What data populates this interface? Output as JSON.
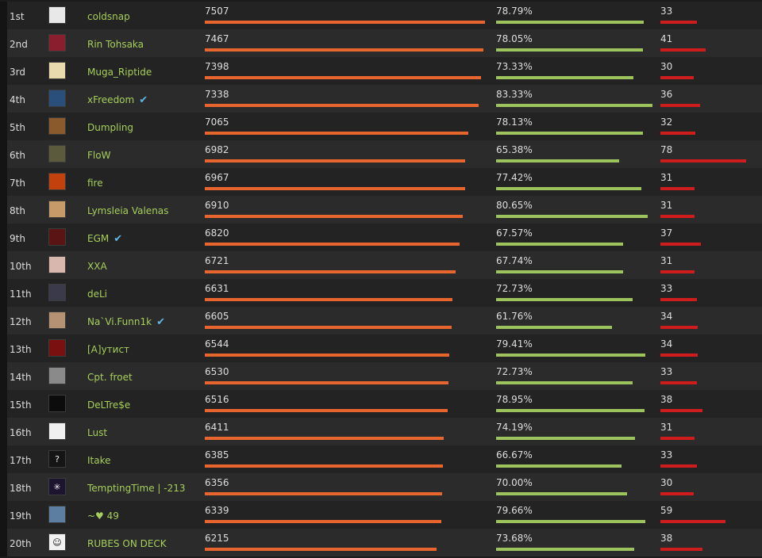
{
  "colors": {
    "mmr_bar": "#e8662d",
    "winrate_bar": "#9dc45c",
    "games_bar": "#cf1d1d",
    "name": "#a6cf5b"
  },
  "rows": [
    {
      "rank": "1st",
      "name": "coldsnap",
      "verified": false,
      "mmr": "7507",
      "winrate": "78.79%",
      "games": "33",
      "winrate_pct": 78.79
    },
    {
      "rank": "2nd",
      "name": "Rin Tohsaka",
      "verified": false,
      "mmr": "7467",
      "winrate": "78.05%",
      "games": "41",
      "winrate_pct": 78.05
    },
    {
      "rank": "3rd",
      "name": "Muga_Riptide",
      "verified": false,
      "mmr": "7398",
      "winrate": "73.33%",
      "games": "30",
      "winrate_pct": 73.33
    },
    {
      "rank": "4th",
      "name": "xFreedom",
      "verified": true,
      "mmr": "7338",
      "winrate": "83.33%",
      "games": "36",
      "winrate_pct": 83.33
    },
    {
      "rank": "5th",
      "name": "Dumpling",
      "verified": false,
      "mmr": "7065",
      "winrate": "78.13%",
      "games": "32",
      "winrate_pct": 78.13
    },
    {
      "rank": "6th",
      "name": "FloW",
      "verified": false,
      "mmr": "6982",
      "winrate": "65.38%",
      "games": "78",
      "winrate_pct": 65.38
    },
    {
      "rank": "7th",
      "name": "fire",
      "verified": false,
      "mmr": "6967",
      "winrate": "77.42%",
      "games": "31",
      "winrate_pct": 77.42
    },
    {
      "rank": "8th",
      "name": "Lymsleia Valenas",
      "verified": false,
      "mmr": "6910",
      "winrate": "80.65%",
      "games": "31",
      "winrate_pct": 80.65
    },
    {
      "rank": "9th",
      "name": "EGM",
      "verified": true,
      "mmr": "6820",
      "winrate": "67.57%",
      "games": "37",
      "winrate_pct": 67.57
    },
    {
      "rank": "10th",
      "name": "XXA",
      "verified": false,
      "mmr": "6721",
      "winrate": "67.74%",
      "games": "31",
      "winrate_pct": 67.74
    },
    {
      "rank": "11th",
      "name": "deLi",
      "verified": false,
      "mmr": "6631",
      "winrate": "72.73%",
      "games": "33",
      "winrate_pct": 72.73
    },
    {
      "rank": "12th",
      "name": "Na`Vi.Funn1k",
      "verified": true,
      "mmr": "6605",
      "winrate": "61.76%",
      "games": "34",
      "winrate_pct": 61.76
    },
    {
      "rank": "13th",
      "name": "[A]утист",
      "verified": false,
      "mmr": "6544",
      "winrate": "79.41%",
      "games": "34",
      "winrate_pct": 79.41
    },
    {
      "rank": "14th",
      "name": "Cpt. froet",
      "verified": false,
      "mmr": "6530",
      "winrate": "72.73%",
      "games": "33",
      "winrate_pct": 72.73
    },
    {
      "rank": "15th",
      "name": "DeLTre$e",
      "verified": false,
      "mmr": "6516",
      "winrate": "78.95%",
      "games": "38",
      "winrate_pct": 78.95
    },
    {
      "rank": "16th",
      "name": "Lust",
      "verified": false,
      "mmr": "6411",
      "winrate": "74.19%",
      "games": "31",
      "winrate_pct": 74.19
    },
    {
      "rank": "17th",
      "name": "Itake",
      "verified": false,
      "mmr": "6385",
      "winrate": "66.67%",
      "games": "33",
      "winrate_pct": 66.67
    },
    {
      "rank": "18th",
      "name": "TemptingTime | -213",
      "verified": false,
      "mmr": "6356",
      "winrate": "70.00%",
      "games": "30",
      "winrate_pct": 70.0
    },
    {
      "rank": "19th",
      "name": "~♥ 49",
      "verified": false,
      "mmr": "6339",
      "winrate": "79.66%",
      "games": "59",
      "winrate_pct": 79.66
    },
    {
      "rank": "20th",
      "name": "RUBES ON DECK",
      "verified": false,
      "mmr": "6215",
      "winrate": "73.68%",
      "games": "38",
      "winrate_pct": 73.68
    }
  ],
  "avatars": [
    {
      "icon": "player-avatar",
      "color": "#e8e8e8",
      "glyph": ""
    },
    {
      "icon": "player-avatar",
      "color": "#8b1e2e",
      "glyph": ""
    },
    {
      "icon": "player-avatar",
      "color": "#e8dcae",
      "glyph": ""
    },
    {
      "icon": "player-avatar",
      "color": "#2a4f7a",
      "glyph": ""
    },
    {
      "icon": "player-avatar",
      "color": "#8a5a2c",
      "glyph": ""
    },
    {
      "icon": "player-avatar",
      "color": "#5b5a3c",
      "glyph": ""
    },
    {
      "icon": "player-avatar",
      "color": "#c2410c",
      "glyph": ""
    },
    {
      "icon": "player-avatar",
      "color": "#c79a6a",
      "glyph": ""
    },
    {
      "icon": "player-avatar",
      "color": "#5a1414",
      "glyph": ""
    },
    {
      "icon": "player-avatar",
      "color": "#d8b7ae",
      "glyph": ""
    },
    {
      "icon": "player-avatar",
      "color": "#3a3a4a",
      "glyph": ""
    },
    {
      "icon": "player-avatar",
      "color": "#b59273",
      "glyph": ""
    },
    {
      "icon": "player-avatar",
      "color": "#7a1010",
      "glyph": ""
    },
    {
      "icon": "player-avatar",
      "color": "#8a8a8a",
      "glyph": ""
    },
    {
      "icon": "player-avatar",
      "color": "#0c0c0c",
      "glyph": ""
    },
    {
      "icon": "player-avatar",
      "color": "#f0f0f0",
      "glyph": ""
    },
    {
      "icon": "question-mark-icon",
      "color": "#151515",
      "glyph": "?"
    },
    {
      "icon": "star-burst-icon",
      "color": "#1d1430",
      "glyph": "✳"
    },
    {
      "icon": "player-avatar",
      "color": "#5c7ea0",
      "glyph": ""
    },
    {
      "icon": "skull-icon",
      "color": "#f2f2f2",
      "glyph": "☺"
    }
  ]
}
